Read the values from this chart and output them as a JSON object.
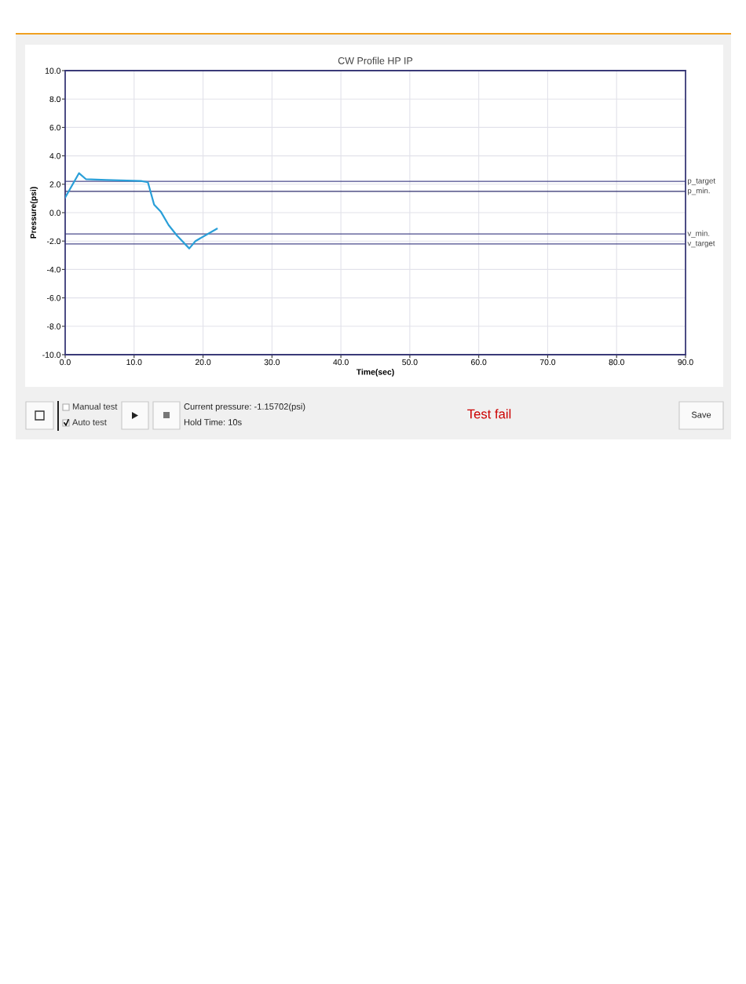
{
  "chart_data": {
    "type": "line",
    "title": "CW Profile HP IP",
    "xlabel": "Time(sec)",
    "ylabel": "Pressure(psi)",
    "x": [
      0,
      2.0,
      3.0,
      6.0,
      8.0,
      11.0,
      12.0,
      12.9,
      13.9,
      15.0,
      16.2,
      18.0,
      18.9,
      22.0
    ],
    "series": [
      {
        "color": "#2a9fd8",
        "values": [
          1.07,
          2.78,
          2.36,
          2.3,
          2.27,
          2.23,
          2.14,
          0.57,
          0.05,
          -0.87,
          -1.6,
          -2.52,
          -2.0,
          -1.14
        ]
      }
    ],
    "xlim": [
      0,
      90
    ],
    "ylim": [
      -10,
      10
    ],
    "xticks": [
      {
        "value": 0,
        "label": "0.0"
      },
      {
        "value": 10,
        "label": "10.0"
      },
      {
        "value": 20,
        "label": "20.0"
      },
      {
        "value": 30,
        "label": "30.0"
      },
      {
        "value": 40,
        "label": "40.0"
      },
      {
        "value": 50,
        "label": "50.0"
      },
      {
        "value": 60,
        "label": "60.0"
      },
      {
        "value": 70,
        "label": "70.0"
      },
      {
        "value": 80,
        "label": "80.0"
      },
      {
        "value": 90,
        "label": "90.0"
      }
    ],
    "yticks": [
      {
        "value": -10,
        "label": "-10.0"
      },
      {
        "value": -8,
        "label": "-8.0"
      },
      {
        "value": -6,
        "label": "-6.0"
      },
      {
        "value": -4,
        "label": "-4.0"
      },
      {
        "value": -2,
        "label": "-2.0"
      },
      {
        "value": 0,
        "label": "0.0"
      },
      {
        "value": 2,
        "label": "2.0"
      },
      {
        "value": 4,
        "label": "4.0"
      },
      {
        "value": 6,
        "label": "6.0"
      },
      {
        "value": 8,
        "label": "8.0"
      },
      {
        "value": 10,
        "label": "10.0"
      }
    ],
    "ref_lines": [
      {
        "axis": "y",
        "value": 2.2,
        "label": "p_target",
        "color": "#4a4a8c"
      },
      {
        "axis": "y",
        "value": 1.5,
        "label": "p_min.",
        "color": "#2e2e6e"
      },
      {
        "axis": "y",
        "value": -1.5,
        "label": "v_min.",
        "color": "#4a4a8c"
      },
      {
        "axis": "y",
        "value": -2.2,
        "label": "v_target",
        "color": "#4a4a8c"
      }
    ],
    "grid": true,
    "marker": "none",
    "line_style": "solid",
    "annotations": [
      "Manual test",
      "Auto test",
      "Current pressure: -1.15702(psi)",
      "Hold Time: 10s",
      "Test fail",
      "Save"
    ]
  }
}
